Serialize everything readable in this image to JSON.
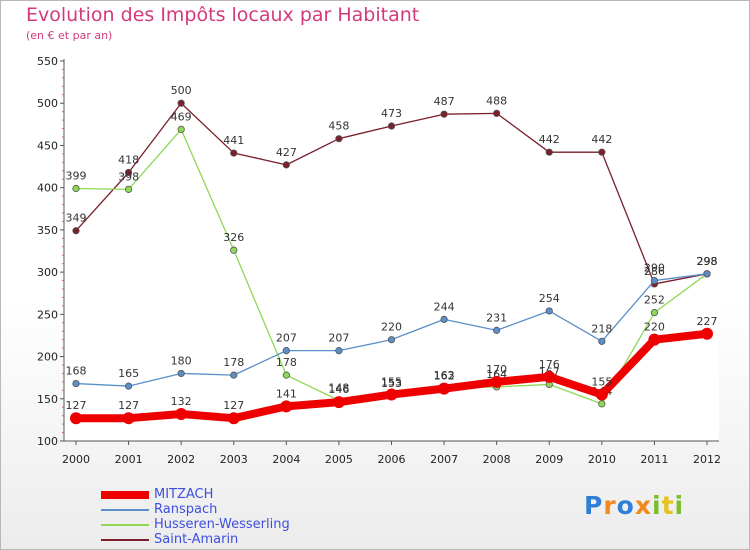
{
  "title": "Evolution des Impôts locaux par Habitant",
  "subtitle": "(en € et par an)",
  "logo": {
    "text": "Proxiti",
    "letters": [
      {
        "ch": "P",
        "color": "#2f7fd8"
      },
      {
        "ch": "r",
        "color": "#f08a1c"
      },
      {
        "ch": "o",
        "color": "#2f7fd8"
      },
      {
        "ch": "x",
        "color": "#f08a1c"
      },
      {
        "ch": "i",
        "color": "#7abf2a"
      },
      {
        "ch": "t",
        "color": "#e6c21e"
      },
      {
        "ch": "i",
        "color": "#7abf2a"
      }
    ]
  },
  "chart_data": {
    "type": "line",
    "x": [
      "2000",
      "2001",
      "2002",
      "2003",
      "2004",
      "2005",
      "2006",
      "2007",
      "2008",
      "2009",
      "2010",
      "2011",
      "2012"
    ],
    "ylim": [
      100,
      550
    ],
    "yticks": [
      100,
      150,
      200,
      250,
      300,
      350,
      400,
      450,
      500,
      550
    ],
    "grid": false,
    "legend_position": "bottom-left",
    "series": [
      {
        "name": "Saint-Amarin",
        "color": "#7a1f2b",
        "values": [
          349,
          418,
          500,
          441,
          427,
          458,
          473,
          487,
          488,
          442,
          442,
          286,
          298
        ]
      },
      {
        "name": "Husseren-Wesserling",
        "color": "#8ed855",
        "values": [
          399,
          398,
          469,
          326,
          178,
          148,
          153,
          163,
          164,
          167,
          144,
          252,
          298
        ]
      },
      {
        "name": "Ranspach",
        "color": "#5b8fc8",
        "values": [
          168,
          165,
          180,
          178,
          207,
          207,
          220,
          244,
          231,
          254,
          218,
          290,
          298
        ]
      },
      {
        "name": "MITZACH",
        "color": "#ee0000",
        "values": [
          127,
          127,
          132,
          127,
          141,
          146,
          155,
          162,
          170,
          176,
          155,
          220,
          227
        ]
      }
    ]
  },
  "legend_order": [
    "MITZACH",
    "Ranspach",
    "Husseren-Wesserling",
    "Saint-Amarin"
  ]
}
